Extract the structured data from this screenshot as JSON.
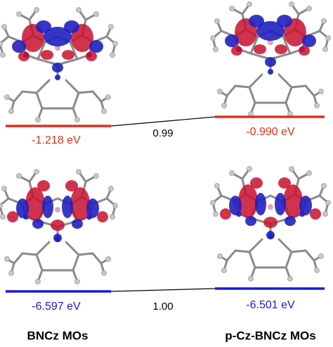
{
  "levels": [
    {
      "label": "-1.218 eV"
    },
    {
      "label": "-0.990 eV"
    },
    {
      "label": "-6.597 eV"
    },
    {
      "label": "-6.501 eV"
    }
  ],
  "connectors": [
    {
      "label": "0.99"
    },
    {
      "label": "1.00"
    }
  ],
  "columns": [
    {
      "title": "BNCz MOs"
    },
    {
      "title": "p-Cz-BNCz MOs"
    }
  ]
}
